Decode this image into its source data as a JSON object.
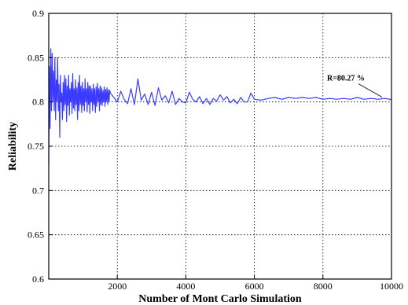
{
  "chart_data": {
    "type": "line",
    "xlabel": "Number of Mont Carlo Simulation",
    "ylabel": "Reliability",
    "xlim": [
      0,
      10000
    ],
    "ylim": [
      0.6,
      0.9
    ],
    "x_ticks": [
      2000,
      4000,
      6000,
      8000,
      10000
    ],
    "y_ticks": [
      0.6,
      0.65,
      0.7,
      0.75,
      0.8,
      0.85,
      0.9
    ],
    "y_tick_labels": [
      "0.6",
      "0.65",
      "0.7",
      "0.75",
      "0.8",
      "0.85",
      "0.9"
    ],
    "grid": true,
    "line_color": "#3b3bff",
    "annotation": {
      "text": "R=80.27 %",
      "x": 10000,
      "y": 0.8027
    },
    "series": [
      {
        "x": [
          0,
          20,
          40,
          60,
          80,
          100,
          120,
          140,
          160,
          180,
          200,
          220,
          240,
          260,
          280,
          300,
          320,
          340,
          360,
          380,
          400,
          420,
          440,
          460,
          480,
          500,
          520,
          540,
          560,
          580,
          600,
          620,
          640,
          660,
          680,
          700,
          720,
          740,
          760,
          780,
          800,
          820,
          840,
          860,
          880,
          900,
          920,
          940,
          960,
          980,
          1000,
          1020,
          1040,
          1060,
          1080,
          1100,
          1120,
          1140,
          1160,
          1180,
          1200,
          1220,
          1240,
          1260,
          1280,
          1300,
          1320,
          1340,
          1360,
          1380,
          1400,
          1420,
          1440,
          1460,
          1480,
          1500,
          1520,
          1540,
          1560,
          1580,
          1600,
          1620,
          1640,
          1660,
          1680,
          1700,
          1720,
          1740,
          1760,
          1780,
          1800,
          1900,
          2000,
          2100,
          2200,
          2300,
          2400,
          2500,
          2600,
          2700,
          2800,
          2900,
          3000,
          3100,
          3200,
          3300,
          3400,
          3500,
          3600,
          3700,
          3800,
          3900,
          4000,
          4100,
          4200,
          4300,
          4400,
          4500,
          4600,
          4700,
          4800,
          4900,
          5000,
          5100,
          5200,
          5300,
          5400,
          5500,
          5600,
          5700,
          5800,
          5900,
          6000,
          6200,
          6400,
          6600,
          6800,
          7000,
          7200,
          7400,
          7600,
          7800,
          8000,
          8200,
          8400,
          8600,
          8800,
          9000,
          9200,
          9400,
          9600,
          9800,
          10000
        ],
        "y": [
          0.73,
          0.84,
          0.77,
          0.86,
          0.79,
          0.855,
          0.8,
          0.835,
          0.79,
          0.85,
          0.78,
          0.825,
          0.8,
          0.85,
          0.79,
          0.82,
          0.76,
          0.83,
          0.8,
          0.81,
          0.78,
          0.822,
          0.79,
          0.83,
          0.797,
          0.826,
          0.778,
          0.818,
          0.796,
          0.83,
          0.785,
          0.815,
          0.8,
          0.822,
          0.787,
          0.832,
          0.793,
          0.815,
          0.79,
          0.825,
          0.797,
          0.816,
          0.78,
          0.822,
          0.79,
          0.83,
          0.797,
          0.818,
          0.788,
          0.822,
          0.796,
          0.815,
          0.79,
          0.826,
          0.8,
          0.815,
          0.789,
          0.822,
          0.797,
          0.818,
          0.787,
          0.818,
          0.8,
          0.815,
          0.79,
          0.82,
          0.797,
          0.815,
          0.788,
          0.817,
          0.795,
          0.821,
          0.8,
          0.815,
          0.79,
          0.818,
          0.797,
          0.816,
          0.796,
          0.813,
          0.8,
          0.817,
          0.795,
          0.814,
          0.8,
          0.816,
          0.797,
          0.814,
          0.8,
          0.813,
          0.81,
          0.805,
          0.8,
          0.812,
          0.803,
          0.798,
          0.815,
          0.797,
          0.826,
          0.802,
          0.809,
          0.797,
          0.811,
          0.796,
          0.816,
          0.802,
          0.807,
          0.799,
          0.812,
          0.797,
          0.804,
          0.8,
          0.799,
          0.811,
          0.803,
          0.8,
          0.806,
          0.798,
          0.804,
          0.797,
          0.804,
          0.801,
          0.808,
          0.802,
          0.806,
          0.799,
          0.803,
          0.798,
          0.805,
          0.8,
          0.8,
          0.81,
          0.803,
          0.802,
          0.804,
          0.805,
          0.803,
          0.805,
          0.804,
          0.805,
          0.804,
          0.805,
          0.803,
          0.804,
          0.803,
          0.804,
          0.803,
          0.805,
          0.803,
          0.804,
          0.803,
          0.804,
          0.8027
        ]
      }
    ]
  }
}
